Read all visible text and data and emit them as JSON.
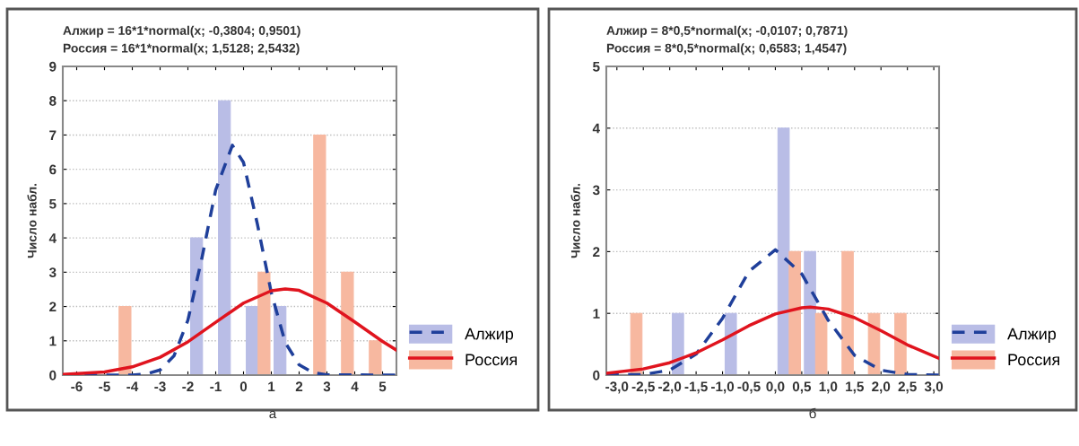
{
  "chart_data": [
    {
      "type": "histogram",
      "title": "Алжир = 16*1*normal(x; -0,3804; 0,9501)",
      "subtitle": "Россия = 16*1*normal(x; 1,5128; 2,5432)",
      "ylabel": "Число набл.",
      "bins": [
        -6,
        -5,
        -4,
        -3,
        -2,
        -1,
        0,
        1,
        2,
        3,
        4,
        5
      ],
      "series": [
        {
          "name": "Алжир",
          "color": "#b9bde6",
          "values": [
            0,
            0,
            0,
            0,
            4,
            8,
            2,
            2,
            0,
            0,
            0
          ]
        },
        {
          "name": "Россия",
          "color": "#f7b8a0",
          "values": [
            0,
            2,
            0,
            0,
            0,
            0,
            3,
            0,
            7,
            3,
            1
          ]
        },
        {
          "type": "line",
          "color": "#1f3f9a",
          "line_style": "dashed",
          "x": [
            -6.5,
            -4,
            -3.5,
            -3,
            -2.5,
            -2,
            -1.5,
            -1,
            -0.4,
            0,
            0.5,
            1,
            1.5,
            2,
            2.5,
            3,
            5.5
          ],
          "values": [
            0,
            0,
            0.03,
            0.15,
            0.56,
            1.6,
            3.4,
            5.4,
            6.7,
            6.2,
            4.4,
            2.4,
            0.95,
            0.3,
            0.07,
            0.01,
            0
          ]
        },
        {
          "type": "line",
          "color": "#e0141e",
          "line_style": "solid",
          "x": [
            -6.5,
            -5,
            -4,
            -3,
            -2,
            -1,
            0,
            1,
            1.5,
            2,
            3,
            4,
            5,
            5.5
          ],
          "values": [
            0.02,
            0.09,
            0.24,
            0.52,
            0.97,
            1.54,
            2.1,
            2.46,
            2.51,
            2.47,
            2.1,
            1.55,
            0.98,
            0.73
          ]
        }
      ],
      "xlim": [
        -6.5,
        5.5
      ],
      "xticks": [
        -6,
        -5,
        -4,
        -3,
        -2,
        -1,
        0,
        1,
        2,
        3,
        4,
        5
      ],
      "ylim": [
        0,
        9
      ],
      "yticks": [
        0,
        1,
        2,
        3,
        4,
        5,
        6,
        7,
        8,
        9
      ],
      "grid": "y",
      "legend": "bottom right",
      "annotations": [
        "а"
      ]
    },
    {
      "type": "histogram",
      "title": "Алжир = 8*0,5*normal(x; -0,0107; 0,7871)",
      "subtitle": "Россия = 8*0,5*normal(x; 0,6583; 1,4547)",
      "ylabel": "Число набл.",
      "bins": [
        -3.0,
        -2.5,
        -2.0,
        -1.5,
        -1.0,
        -0.5,
        0.0,
        0.5,
        1.0,
        1.5,
        2.0,
        2.5,
        3.0
      ],
      "series": [
        {
          "name": "Алжир",
          "color": "#b9bde6",
          "values": [
            0,
            0,
            1,
            0,
            1,
            0,
            4,
            2,
            0,
            0,
            0,
            0
          ]
        },
        {
          "name": "Россия",
          "color": "#f7b8a0",
          "values": [
            1,
            0,
            0,
            0,
            0,
            0,
            2,
            1,
            2,
            1,
            1,
            0
          ]
        },
        {
          "type": "line",
          "color": "#1f3f9a",
          "line_style": "dashed",
          "x": [
            -3.2,
            -2.5,
            -2,
            -1.5,
            -1,
            -0.5,
            0,
            0.5,
            1,
            1.5,
            2,
            2.5,
            3.1
          ],
          "values": [
            0,
            0.01,
            0.08,
            0.34,
            0.92,
            1.68,
            2.03,
            1.64,
            0.89,
            0.32,
            0.08,
            0.01,
            0
          ]
        },
        {
          "type": "line",
          "color": "#e0141e",
          "line_style": "solid",
          "x": [
            -3.2,
            -2.5,
            -2,
            -1.5,
            -1,
            -0.5,
            0,
            0.5,
            0.66,
            1,
            1.5,
            2,
            2.5,
            3.1
          ],
          "values": [
            0.03,
            0.1,
            0.2,
            0.36,
            0.57,
            0.8,
            0.99,
            1.09,
            1.1,
            1.07,
            0.93,
            0.72,
            0.49,
            0.27
          ]
        }
      ],
      "xlim": [
        -3.2,
        3.1
      ],
      "xticks": [
        {
          "value": -3.0,
          "label": "-3,0"
        },
        {
          "value": -2.5,
          "label": "-2,5"
        },
        {
          "value": -2.0,
          "label": "-2,0"
        },
        {
          "value": -1.5,
          "label": "-1,5"
        },
        {
          "value": -1.0,
          "label": "-1,0"
        },
        {
          "value": -0.5,
          "label": "-0,5"
        },
        {
          "value": 0.0,
          "label": "0,0"
        },
        {
          "value": 0.5,
          "label": "0,5"
        },
        {
          "value": 1.0,
          "label": "1,0"
        },
        {
          "value": 1.5,
          "label": "1,5"
        },
        {
          "value": 2.0,
          "label": "2,0"
        },
        {
          "value": 2.5,
          "label": "2,5"
        },
        {
          "value": 3.0,
          "label": "3,0"
        }
      ],
      "ylim": [
        0,
        5
      ],
      "yticks": [
        0,
        1,
        2,
        3,
        4,
        5
      ],
      "grid": "y",
      "legend": "bottom right",
      "annotations": [
        "б"
      ]
    }
  ]
}
